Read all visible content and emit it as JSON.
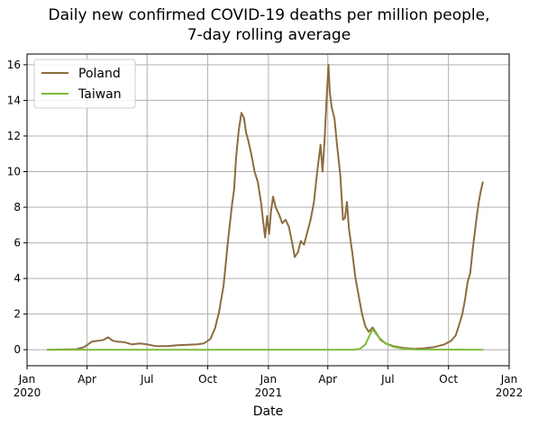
{
  "chart_data": {
    "type": "line",
    "title": "Daily new confirmed COVID-19 deaths per million people,",
    "subtitle": "7-day rolling average",
    "xlabel": "Date",
    "ylabel": "",
    "xlim": [
      "2020-01-01",
      "2022-01-01"
    ],
    "ylim": [
      -0.9,
      16.6
    ],
    "grid": true,
    "legend_position": "upper-left",
    "x_ticks": [
      {
        "date": "2020-01-01",
        "label": "Jan",
        "sublabel": "2020"
      },
      {
        "date": "2020-04-01",
        "label": "Apr",
        "sublabel": ""
      },
      {
        "date": "2020-07-01",
        "label": "Jul",
        "sublabel": ""
      },
      {
        "date": "2020-10-01",
        "label": "Oct",
        "sublabel": ""
      },
      {
        "date": "2021-01-01",
        "label": "Jan",
        "sublabel": "2021"
      },
      {
        "date": "2021-04-01",
        "label": "Apr",
        "sublabel": ""
      },
      {
        "date": "2021-07-01",
        "label": "Jul",
        "sublabel": ""
      },
      {
        "date": "2021-10-01",
        "label": "Oct",
        "sublabel": ""
      },
      {
        "date": "2022-01-01",
        "label": "Jan",
        "sublabel": "2022"
      }
    ],
    "y_ticks": [
      0,
      2,
      4,
      6,
      8,
      10,
      12,
      14,
      16
    ],
    "series": [
      {
        "name": "Poland",
        "color": "#8c6d3f",
        "points": [
          [
            "2020-02-01",
            0
          ],
          [
            "2020-03-15",
            0.02
          ],
          [
            "2020-03-28",
            0.15
          ],
          [
            "2020-04-08",
            0.45
          ],
          [
            "2020-04-18",
            0.5
          ],
          [
            "2020-04-26",
            0.55
          ],
          [
            "2020-05-03",
            0.7
          ],
          [
            "2020-05-10",
            0.5
          ],
          [
            "2020-05-18",
            0.45
          ],
          [
            "2020-05-28",
            0.42
          ],
          [
            "2020-06-08",
            0.3
          ],
          [
            "2020-06-20",
            0.35
          ],
          [
            "2020-07-01",
            0.3
          ],
          [
            "2020-07-15",
            0.2
          ],
          [
            "2020-08-01",
            0.2
          ],
          [
            "2020-08-15",
            0.25
          ],
          [
            "2020-09-01",
            0.28
          ],
          [
            "2020-09-15",
            0.3
          ],
          [
            "2020-09-25",
            0.35
          ],
          [
            "2020-10-05",
            0.6
          ],
          [
            "2020-10-12",
            1.2
          ],
          [
            "2020-10-18",
            2.1
          ],
          [
            "2020-10-25",
            3.6
          ],
          [
            "2020-11-01",
            6.2
          ],
          [
            "2020-11-07",
            8.2
          ],
          [
            "2020-11-10",
            9.0
          ],
          [
            "2020-11-13",
            10.8
          ],
          [
            "2020-11-17",
            12.3
          ],
          [
            "2020-11-21",
            13.3
          ],
          [
            "2020-11-25",
            13.0
          ],
          [
            "2020-11-28",
            12.2
          ],
          [
            "2020-12-01",
            11.8
          ],
          [
            "2020-12-06",
            11.0
          ],
          [
            "2020-12-11",
            10.0
          ],
          [
            "2020-12-16",
            9.4
          ],
          [
            "2020-12-21",
            8.2
          ],
          [
            "2020-12-24",
            7.2
          ],
          [
            "2020-12-27",
            6.3
          ],
          [
            "2020-12-30",
            7.5
          ],
          [
            "2021-01-02",
            6.5
          ],
          [
            "2021-01-05",
            7.8
          ],
          [
            "2021-01-08",
            8.6
          ],
          [
            "2021-01-12",
            8.0
          ],
          [
            "2021-01-17",
            7.6
          ],
          [
            "2021-01-22",
            7.1
          ],
          [
            "2021-01-27",
            7.3
          ],
          [
            "2021-02-01",
            6.9
          ],
          [
            "2021-02-06",
            6.0
          ],
          [
            "2021-02-10",
            5.2
          ],
          [
            "2021-02-15",
            5.5
          ],
          [
            "2021-02-19",
            6.1
          ],
          [
            "2021-02-24",
            5.9
          ],
          [
            "2021-03-01",
            6.6
          ],
          [
            "2021-03-06",
            7.3
          ],
          [
            "2021-03-11",
            8.3
          ],
          [
            "2021-03-16",
            10.0
          ],
          [
            "2021-03-21",
            11.5
          ],
          [
            "2021-03-24",
            10.0
          ],
          [
            "2021-03-27",
            11.7
          ],
          [
            "2021-03-30",
            14.0
          ],
          [
            "2021-04-02",
            16.0
          ],
          [
            "2021-04-04",
            14.5
          ],
          [
            "2021-04-07",
            13.6
          ],
          [
            "2021-04-11",
            13.0
          ],
          [
            "2021-04-15",
            11.5
          ],
          [
            "2021-04-20",
            9.8
          ],
          [
            "2021-04-24",
            7.3
          ],
          [
            "2021-04-27",
            7.4
          ],
          [
            "2021-04-30",
            8.3
          ],
          [
            "2021-05-03",
            6.8
          ],
          [
            "2021-05-08",
            5.5
          ],
          [
            "2021-05-13",
            4.0
          ],
          [
            "2021-05-18",
            3.0
          ],
          [
            "2021-05-23",
            2.0
          ],
          [
            "2021-05-28",
            1.3
          ],
          [
            "2021-06-02",
            1.0
          ],
          [
            "2021-06-08",
            1.25
          ],
          [
            "2021-06-14",
            0.9
          ],
          [
            "2021-06-20",
            0.55
          ],
          [
            "2021-06-28",
            0.35
          ],
          [
            "2021-07-10",
            0.2
          ],
          [
            "2021-07-25",
            0.1
          ],
          [
            "2021-08-10",
            0.05
          ],
          [
            "2021-08-25",
            0.08
          ],
          [
            "2021-09-10",
            0.15
          ],
          [
            "2021-09-25",
            0.3
          ],
          [
            "2021-10-05",
            0.5
          ],
          [
            "2021-10-12",
            0.8
          ],
          [
            "2021-10-18",
            1.5
          ],
          [
            "2021-10-22",
            2.0
          ],
          [
            "2021-10-26",
            2.8
          ],
          [
            "2021-10-30",
            3.8
          ],
          [
            "2021-11-03",
            4.3
          ],
          [
            "2021-11-07",
            5.7
          ],
          [
            "2021-11-10",
            6.6
          ],
          [
            "2021-11-13",
            7.5
          ],
          [
            "2021-11-16",
            8.3
          ],
          [
            "2021-11-19",
            8.9
          ],
          [
            "2021-11-22",
            9.4
          ]
        ]
      },
      {
        "name": "Taiwan",
        "color": "#7fba3c",
        "points": [
          [
            "2020-02-01",
            0
          ],
          [
            "2021-05-10",
            0
          ],
          [
            "2021-05-20",
            0.05
          ],
          [
            "2021-05-28",
            0.3
          ],
          [
            "2021-06-02",
            0.7
          ],
          [
            "2021-06-08",
            1.15
          ],
          [
            "2021-06-13",
            0.9
          ],
          [
            "2021-06-20",
            0.6
          ],
          [
            "2021-06-28",
            0.35
          ],
          [
            "2021-07-10",
            0.15
          ],
          [
            "2021-07-25",
            0.05
          ],
          [
            "2021-08-15",
            0.01
          ],
          [
            "2021-11-22",
            0
          ]
        ]
      }
    ]
  }
}
